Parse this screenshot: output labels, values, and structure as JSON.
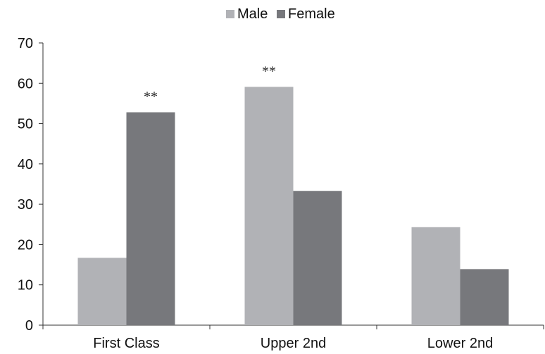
{
  "chart_data": {
    "type": "bar",
    "categories": [
      "First Class",
      "Upper 2nd",
      "Lower 2nd"
    ],
    "series": [
      {
        "name": "Male",
        "values": [
          16.7,
          59.1,
          24.3
        ],
        "color": "#b1b2b6"
      },
      {
        "name": "Female",
        "values": [
          52.8,
          33.3,
          13.9
        ],
        "color": "#77787c"
      }
    ],
    "yticks": [
      0,
      10,
      20,
      30,
      40,
      50,
      60,
      70
    ],
    "ylim": [
      0,
      70
    ],
    "grid": false,
    "legend_position": "top-center",
    "annotations": [
      {
        "text": "**",
        "category": "First Class",
        "series": "Female"
      },
      {
        "text": "**",
        "category": "Upper 2nd",
        "series": "Male"
      }
    ]
  }
}
